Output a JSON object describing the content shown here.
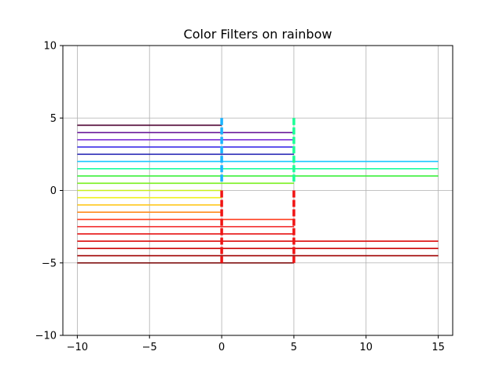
{
  "chart_data": {
    "type": "line",
    "title": "Color Filters on rainbow",
    "xlabel": "",
    "ylabel": "",
    "xlim": [
      -11,
      16
    ],
    "ylim": [
      -10,
      10
    ],
    "x_ticks": [
      -10,
      -5,
      0,
      5,
      10,
      15
    ],
    "y_ticks": [
      -10,
      -5,
      0,
      5,
      10
    ],
    "x_tick_labels": [
      "−10",
      "−5",
      "0",
      "5",
      "10",
      "15"
    ],
    "y_tick_labels": [
      "−10",
      "−5",
      "0",
      "5",
      "10"
    ],
    "grid": true,
    "legend": "none",
    "horizontal_segments": [
      {
        "y": 4.5,
        "x": [
          -10,
          0
        ],
        "color": "#4b0030"
      },
      {
        "y": 4.0,
        "x": [
          -10,
          0
        ],
        "color": "#6a1a9a"
      },
      {
        "y": 4.0,
        "x": [
          0,
          5
        ],
        "color": "#6a1a9a"
      },
      {
        "y": 3.5,
        "x": [
          -10,
          0
        ],
        "color": "#7b2fd6"
      },
      {
        "y": 3.5,
        "x": [
          0,
          5
        ],
        "color": "#7b2fd6"
      },
      {
        "y": 3.0,
        "x": [
          -10,
          0
        ],
        "color": "#3c2fe8"
      },
      {
        "y": 3.0,
        "x": [
          0,
          5
        ],
        "color": "#3c2fe8"
      },
      {
        "y": 2.5,
        "x": [
          -10,
          0
        ],
        "color": "#1a1ab0"
      },
      {
        "y": 2.5,
        "x": [
          0,
          5
        ],
        "color": "#1a1ab0"
      },
      {
        "y": 2.0,
        "x": [
          -10,
          15
        ],
        "color": "#1ac8ff"
      },
      {
        "y": 1.5,
        "x": [
          -10,
          15
        ],
        "color": "#1affa0"
      },
      {
        "y": 1.0,
        "x": [
          -10,
          15
        ],
        "color": "#3cf03c"
      },
      {
        "y": 0.5,
        "x": [
          -10,
          5
        ],
        "color": "#78f01e"
      },
      {
        "y": 0.0,
        "x": [
          -10,
          0
        ],
        "color": "#c8f01e"
      },
      {
        "y": -0.5,
        "x": [
          -10,
          0
        ],
        "color": "#f0f01e"
      },
      {
        "y": -1.0,
        "x": [
          -10,
          0
        ],
        "color": "#ffc81e"
      },
      {
        "y": -1.5,
        "x": [
          -10,
          0
        ],
        "color": "#ff8c1e"
      },
      {
        "y": -2.0,
        "x": [
          -10,
          5
        ],
        "color": "#ff3c1e"
      },
      {
        "y": -2.5,
        "x": [
          -10,
          5
        ],
        "color": "#f01e1e"
      },
      {
        "y": -3.0,
        "x": [
          -10,
          5
        ],
        "color": "#e61414"
      },
      {
        "y": -3.5,
        "x": [
          -10,
          15
        ],
        "color": "#dc0a0a"
      },
      {
        "y": -4.0,
        "x": [
          -10,
          15
        ],
        "color": "#c80000"
      },
      {
        "y": -4.5,
        "x": [
          -10,
          15
        ],
        "color": "#a00000"
      },
      {
        "y": -5.0,
        "x": [
          -10,
          5
        ],
        "color": "#780000"
      }
    ],
    "vertical_markers": [
      {
        "x": 0,
        "y": [
          -5,
          5
        ],
        "colors": [
          {
            "from": 0.5,
            "to": 5,
            "color": "#1ab4ff"
          },
          {
            "from": -5,
            "to": 0,
            "color": "#f01414"
          }
        ]
      },
      {
        "x": 5,
        "y": [
          -5,
          5
        ],
        "colors": [
          {
            "from": 0.5,
            "to": 5,
            "color": "#1aff96"
          },
          {
            "from": -5,
            "to": 0,
            "color": "#f01414"
          }
        ]
      }
    ]
  }
}
